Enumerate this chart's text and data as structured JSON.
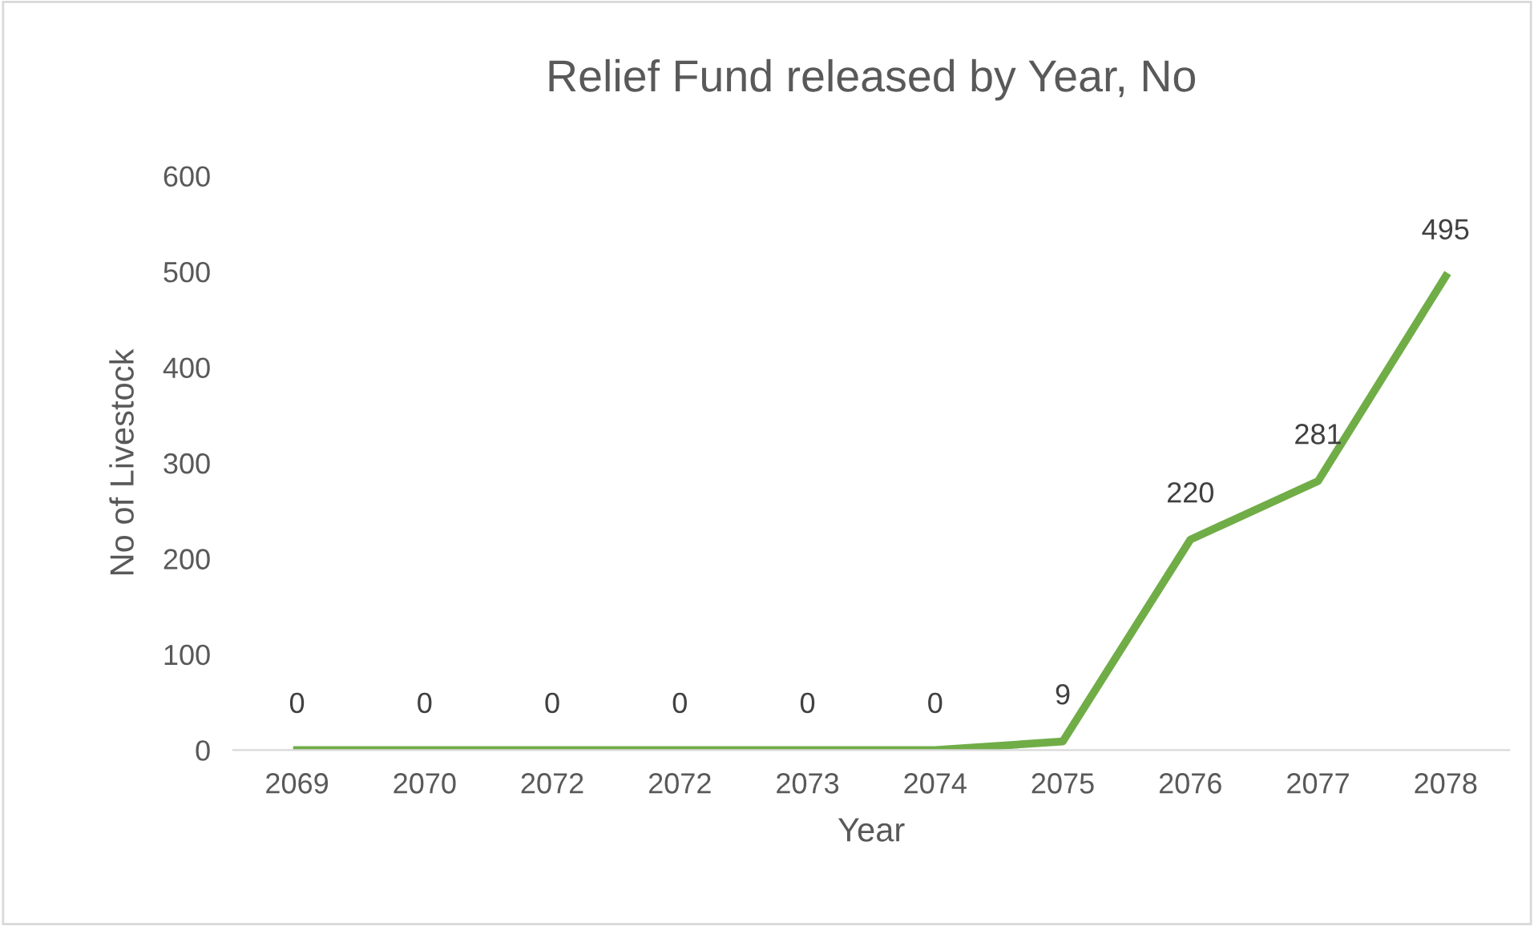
{
  "chart_data": {
    "type": "line",
    "title": "Relief Fund released by Year, No",
    "xlabel": "Year",
    "ylabel": "No of Livestock",
    "categories": [
      "2069",
      "2070",
      "2072",
      "2072",
      "2073",
      "2074",
      "2075",
      "2076",
      "2077",
      "2078"
    ],
    "series": [
      {
        "color": "#70ad47",
        "values": [
          0,
          0,
          0,
          0,
          0,
          0,
          9,
          220,
          281,
          495
        ]
      }
    ],
    "ylim": [
      0,
      600
    ],
    "yticks": [
      0,
      100,
      200,
      300,
      400,
      500,
      600
    ],
    "grid": false,
    "marker": "none",
    "line_style": "solid",
    "data_labels": true
  }
}
